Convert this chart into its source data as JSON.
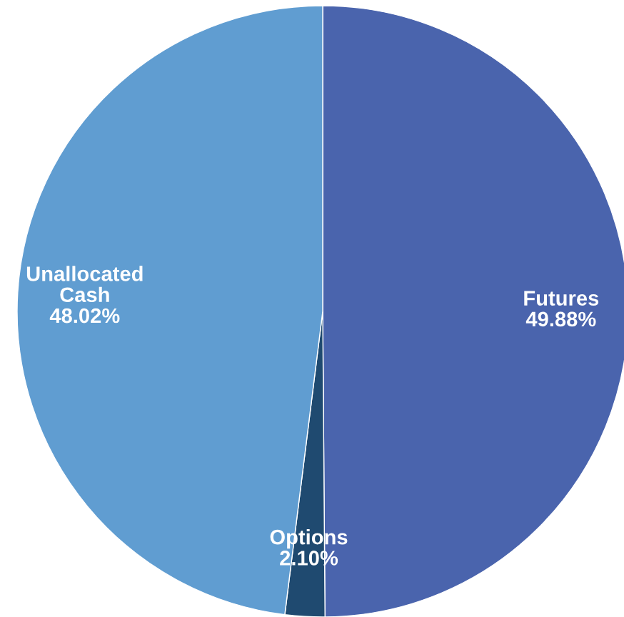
{
  "chart_data": {
    "type": "pie",
    "categories": [
      "Futures",
      "Options",
      "Unallocated\nCash"
    ],
    "values": [
      49.88,
      2.1,
      48.02
    ],
    "value_labels": [
      "49.88%",
      "2.10%",
      "48.02%"
    ],
    "colors": [
      "#4a64ad",
      "#1f4a70",
      "#609dd1"
    ],
    "legend": false
  }
}
